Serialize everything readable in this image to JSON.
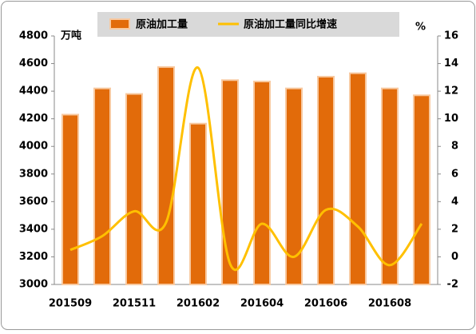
{
  "chart_data": {
    "type": "bar+line",
    "categories": [
      "201509",
      null,
      "201511",
      null,
      "201602",
      null,
      "201604",
      null,
      "201606",
      null,
      "201608",
      null
    ],
    "series": [
      {
        "name": "原油加工量",
        "type": "bar",
        "color": "#e26b0a",
        "values": [
          4230,
          4420,
          4380,
          4575,
          4165,
          4480,
          4470,
          4420,
          4505,
          4530,
          4420,
          4370
        ]
      },
      {
        "name": "原油加工量同比增速",
        "type": "line",
        "axis": "y2",
        "color": "#ffc000",
        "values": [
          0.5,
          1.5,
          3.3,
          2.5,
          13.7,
          -0.5,
          2.4,
          0,
          3.4,
          2.2,
          -0.6,
          2.4
        ]
      }
    ],
    "ylabel": "万吨",
    "y2label": "%",
    "ylim": [
      3000,
      4800
    ],
    "yticks": [
      3000,
      3200,
      3400,
      3600,
      3800,
      4000,
      4200,
      4400,
      4600,
      4800
    ],
    "y2lim": [
      -2,
      16
    ],
    "y2ticks": [
      -2,
      0,
      2,
      4,
      6,
      8,
      10,
      12,
      14,
      16
    ],
    "legend": "top"
  }
}
